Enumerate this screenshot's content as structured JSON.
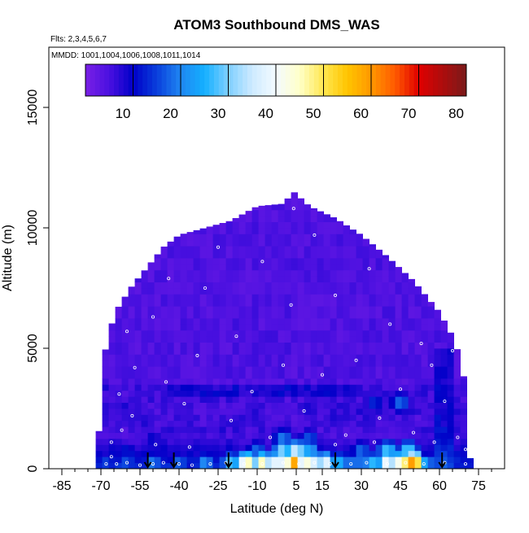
{
  "chart_data": {
    "type": "heatmap",
    "title": "ATOM3 Southbound DMS_WAS",
    "subtitle_flights": "Flts: 2,3,4,5,6,7",
    "subtitle_dates": "MMDD: 1001,1004,1006,1008,1011,1014",
    "xlabel": "Latitude (deg N)",
    "ylabel": "Altitude (m)",
    "xlim": [
      -90,
      85
    ],
    "ylim": [
      0,
      17500
    ],
    "x_ticks": [
      -85,
      -70,
      -55,
      -40,
      -25,
      -10,
      5,
      15,
      30,
      45,
      60,
      75
    ],
    "x_tick_labels": [
      "-85",
      "-70",
      "-55",
      "-40",
      "-25",
      "-10",
      "5",
      "15",
      "30",
      "45",
      "60",
      "75"
    ],
    "y_ticks": [
      0,
      5000,
      10000,
      15000
    ],
    "y_tick_labels": [
      "0",
      "5000",
      "10000",
      "15000"
    ],
    "colorbar": {
      "range": [
        0,
        80
      ],
      "ticks": [
        10,
        20,
        30,
        40,
        50,
        60,
        70,
        80
      ],
      "tick_labels": [
        "10",
        "20",
        "30",
        "40",
        "50",
        "60",
        "70",
        "80"
      ],
      "colors": [
        "#7a1fe6",
        "#2a00d6",
        "#0000c8",
        "#0a3fdc",
        "#1f86f2",
        "#14b0ff",
        "#9ad8ff",
        "#eef8ff",
        "#ffffd0",
        "#ffe14a",
        "#ffb000",
        "#ff7a00",
        "#f23a00",
        "#d10000",
        "#a00000",
        "#7a1a1a"
      ]
    },
    "data_extent": {
      "lat": [
        -72,
        72
      ],
      "alt": [
        0,
        11500
      ]
    },
    "top_envelope": [
      {
        "lat": -72,
        "alt": 0
      },
      {
        "lat": -70,
        "alt": 2500
      },
      {
        "lat": -68,
        "alt": 5300
      },
      {
        "lat": -64,
        "alt": 6600
      },
      {
        "lat": -58,
        "alt": 7600
      },
      {
        "lat": -52,
        "alt": 8400
      },
      {
        "lat": -46,
        "alt": 9200
      },
      {
        "lat": -40,
        "alt": 9700
      },
      {
        "lat": -30,
        "alt": 10000
      },
      {
        "lat": -20,
        "alt": 10300
      },
      {
        "lat": -10,
        "alt": 10900
      },
      {
        "lat": 0,
        "alt": 11000
      },
      {
        "lat": 4,
        "alt": 11500
      },
      {
        "lat": 10,
        "alt": 10900
      },
      {
        "lat": 20,
        "alt": 10400
      },
      {
        "lat": 30,
        "alt": 9700
      },
      {
        "lat": 40,
        "alt": 8800
      },
      {
        "lat": 50,
        "alt": 7800
      },
      {
        "lat": 60,
        "alt": 6500
      },
      {
        "lat": 66,
        "alt": 5300
      },
      {
        "lat": 70,
        "alt": 3500
      },
      {
        "lat": 72,
        "alt": 0
      }
    ],
    "hot_cells": [
      {
        "lat": -68,
        "alt": 250,
        "value": 18
      },
      {
        "lat": -60,
        "alt": 250,
        "value": 20
      },
      {
        "lat": -50,
        "alt": 250,
        "value": 24
      },
      {
        "lat": -40,
        "alt": 250,
        "value": 22
      },
      {
        "lat": -30,
        "alt": 250,
        "value": 26
      },
      {
        "lat": -20,
        "alt": 250,
        "value": 35
      },
      {
        "lat": -14,
        "alt": 250,
        "value": 58
      },
      {
        "lat": -8,
        "alt": 250,
        "value": 56
      },
      {
        "lat": -2,
        "alt": 250,
        "value": 52
      },
      {
        "lat": 4,
        "alt": 250,
        "value": 72
      },
      {
        "lat": 10,
        "alt": 250,
        "value": 55
      },
      {
        "lat": 16,
        "alt": 250,
        "value": 48
      },
      {
        "lat": 22,
        "alt": 250,
        "value": 30
      },
      {
        "lat": 28,
        "alt": 250,
        "value": 25
      },
      {
        "lat": 34,
        "alt": 250,
        "value": 32
      },
      {
        "lat": 40,
        "alt": 250,
        "value": 50
      },
      {
        "lat": 46,
        "alt": 250,
        "value": 62
      },
      {
        "lat": 50,
        "alt": 250,
        "value": 76
      },
      {
        "lat": 56,
        "alt": 250,
        "value": 22
      },
      {
        "lat": 64,
        "alt": 250,
        "value": 14
      },
      {
        "lat": 70,
        "alt": 250,
        "value": 10
      },
      {
        "lat": -60,
        "alt": 750,
        "value": 14
      },
      {
        "lat": -45,
        "alt": 750,
        "value": 12
      },
      {
        "lat": -30,
        "alt": 750,
        "value": 11
      },
      {
        "lat": -10,
        "alt": 750,
        "value": 22
      },
      {
        "lat": 0,
        "alt": 750,
        "value": 38
      },
      {
        "lat": 5,
        "alt": 750,
        "value": 44
      },
      {
        "lat": 10,
        "alt": 750,
        "value": 30
      },
      {
        "lat": 30,
        "alt": 750,
        "value": 22
      },
      {
        "lat": 40,
        "alt": 750,
        "value": 34
      },
      {
        "lat": 48,
        "alt": 750,
        "value": 36
      },
      {
        "lat": 0,
        "alt": 1250,
        "value": 24
      },
      {
        "lat": 10,
        "alt": 1250,
        "value": 20
      },
      {
        "lat": -50,
        "alt": 1250,
        "value": 12
      },
      {
        "lat": 45,
        "alt": 2750,
        "value": 22
      },
      {
        "lat": 35,
        "alt": 2750,
        "value": 16
      }
    ],
    "flight_arrows_lat": [
      -52,
      -42,
      -21,
      20,
      61
    ],
    "sample_points": [
      {
        "lat": -68,
        "alt": 200
      },
      {
        "lat": -64,
        "alt": 200
      },
      {
        "lat": -60,
        "alt": 250
      },
      {
        "lat": -55,
        "alt": 150
      },
      {
        "lat": -50,
        "alt": 200
      },
      {
        "lat": -46,
        "alt": 250
      },
      {
        "lat": -40,
        "alt": 200
      },
      {
        "lat": -35,
        "alt": 150
      },
      {
        "lat": -28,
        "alt": 200
      },
      {
        "lat": -22,
        "alt": 250
      },
      {
        "lat": -15,
        "alt": 200
      },
      {
        "lat": -8,
        "alt": 200
      },
      {
        "lat": 0,
        "alt": 250
      },
      {
        "lat": 6,
        "alt": 200
      },
      {
        "lat": 12,
        "alt": 250
      },
      {
        "lat": 18,
        "alt": 200
      },
      {
        "lat": 26,
        "alt": 200
      },
      {
        "lat": 32,
        "alt": 250
      },
      {
        "lat": 40,
        "alt": 200
      },
      {
        "lat": 47,
        "alt": 250
      },
      {
        "lat": 54,
        "alt": 200
      },
      {
        "lat": 62,
        "alt": 250
      },
      {
        "lat": 70,
        "alt": 200
      },
      {
        "lat": -66,
        "alt": 1100
      },
      {
        "lat": -62,
        "alt": 1600
      },
      {
        "lat": -58,
        "alt": 2200
      },
      {
        "lat": -63,
        "alt": 3100
      },
      {
        "lat": -57,
        "alt": 4200
      },
      {
        "lat": -60,
        "alt": 5700
      },
      {
        "lat": -50,
        "alt": 6300
      },
      {
        "lat": -45,
        "alt": 3600
      },
      {
        "lat": -38,
        "alt": 2700
      },
      {
        "lat": -33,
        "alt": 4700
      },
      {
        "lat": -30,
        "alt": 7500
      },
      {
        "lat": -25,
        "alt": 9200
      },
      {
        "lat": -20,
        "alt": 2000
      },
      {
        "lat": -18,
        "alt": 5500
      },
      {
        "lat": -12,
        "alt": 3200
      },
      {
        "lat": -8,
        "alt": 8600
      },
      {
        "lat": -5,
        "alt": 1300
      },
      {
        "lat": 0,
        "alt": 4300
      },
      {
        "lat": 3,
        "alt": 6800
      },
      {
        "lat": 4,
        "alt": 10800
      },
      {
        "lat": 8,
        "alt": 2400
      },
      {
        "lat": 12,
        "alt": 9700
      },
      {
        "lat": 15,
        "alt": 3900
      },
      {
        "lat": 20,
        "alt": 7200
      },
      {
        "lat": 24,
        "alt": 1400
      },
      {
        "lat": 28,
        "alt": 4500
      },
      {
        "lat": 33,
        "alt": 8300
      },
      {
        "lat": 37,
        "alt": 2100
      },
      {
        "lat": 41,
        "alt": 6000
      },
      {
        "lat": 45,
        "alt": 3300
      },
      {
        "lat": 50,
        "alt": 1500
      },
      {
        "lat": 53,
        "alt": 5200
      },
      {
        "lat": 57,
        "alt": 4300
      },
      {
        "lat": 60,
        "alt": 6700
      },
      {
        "lat": 62,
        "alt": 2800
      },
      {
        "lat": 65,
        "alt": 4900
      },
      {
        "lat": 67,
        "alt": 1300
      },
      {
        "lat": 70,
        "alt": 800
      },
      {
        "lat": -53,
        "alt": 9700
      },
      {
        "lat": -44,
        "alt": 7900
      },
      {
        "lat": -66,
        "alt": 500
      },
      {
        "lat": -49,
        "alt": 1000
      },
      {
        "lat": -36,
        "alt": 900
      },
      {
        "lat": 20,
        "alt": 1000
      },
      {
        "lat": 35,
        "alt": 1100
      },
      {
        "lat": 58,
        "alt": 1100
      }
    ]
  }
}
